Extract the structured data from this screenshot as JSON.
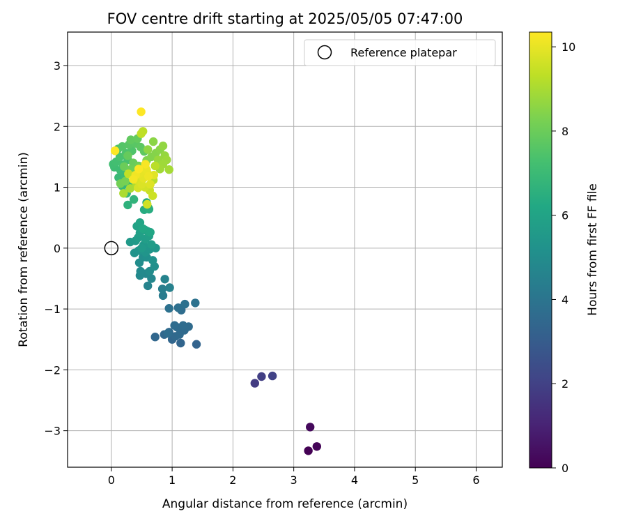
{
  "chart_data": {
    "type": "scatter",
    "title": "FOV centre drift starting at 2025/05/05 07:47:00",
    "xlabel": "Angular distance from reference (arcmin)",
    "ylabel": "Rotation from reference (arcmin)",
    "xlim": [
      -0.72,
      6.43
    ],
    "ylim": [
      -3.6,
      3.55
    ],
    "xticks": [
      0,
      1,
      2,
      3,
      4,
      5,
      6
    ],
    "yticks": [
      -3,
      -2,
      -1,
      0,
      1,
      2,
      3
    ],
    "xtick_labels": [
      "0",
      "1",
      "2",
      "3",
      "4",
      "5",
      "6"
    ],
    "ytick_labels": [
      "−3",
      "−2",
      "−1",
      "0",
      "1",
      "2",
      "3"
    ],
    "grid": true,
    "legend": {
      "position": "top-right",
      "entries": [
        "Reference platepar"
      ]
    },
    "colorbar": {
      "label": "Hours from first FF file",
      "colormap": "viridis",
      "range": [
        0,
        10.35
      ],
      "ticks": [
        0,
        2,
        4,
        6,
        8,
        10
      ],
      "tick_labels": [
        "0",
        "2",
        "4",
        "6",
        "8",
        "10"
      ]
    },
    "reference": {
      "name": "Reference platepar",
      "x": 0,
      "y": 0
    },
    "series": [
      {
        "name": "Reference platepar",
        "points": [
          [
            0,
            0
          ]
        ]
      },
      {
        "points": [
          [
            3.24,
            -3.33,
            0.0
          ],
          [
            3.38,
            -3.26,
            0.1
          ],
          [
            3.27,
            -2.94,
            0.25
          ],
          [
            2.36,
            -2.22,
            1.8
          ],
          [
            2.47,
            -2.11,
            1.9
          ],
          [
            2.65,
            -2.1,
            2.0
          ],
          [
            1.4,
            -1.58,
            3.3
          ],
          [
            1.14,
            -1.56,
            3.35
          ],
          [
            1.0,
            -1.5,
            3.4
          ],
          [
            0.72,
            -1.46,
            3.45
          ],
          [
            0.87,
            -1.42,
            3.45
          ],
          [
            0.95,
            -1.38,
            3.5
          ],
          [
            1.05,
            -1.45,
            3.5
          ],
          [
            1.12,
            -1.42,
            3.55
          ],
          [
            1.2,
            -1.35,
            3.55
          ],
          [
            1.08,
            -1.3,
            3.6
          ],
          [
            1.27,
            -1.29,
            3.6
          ],
          [
            1.18,
            -1.27,
            3.65
          ],
          [
            1.04,
            -1.27,
            3.65
          ],
          [
            0.93,
            -1.4,
            3.7
          ],
          [
            1.15,
            -1.02,
            3.7
          ],
          [
            1.1,
            -0.98,
            3.8
          ],
          [
            0.95,
            -0.99,
            3.85
          ],
          [
            1.21,
            -0.92,
            3.85
          ],
          [
            1.38,
            -0.9,
            3.9
          ],
          [
            0.85,
            -0.78,
            4.3
          ],
          [
            0.84,
            -0.67,
            4.4
          ],
          [
            0.96,
            -0.65,
            4.5
          ],
          [
            0.88,
            -0.51,
            4.6
          ],
          [
            0.6,
            -0.62,
            4.6
          ],
          [
            0.66,
            -0.5,
            4.75
          ],
          [
            0.57,
            -0.42,
            4.8
          ],
          [
            0.47,
            -0.45,
            4.85
          ],
          [
            0.48,
            -0.38,
            4.9
          ],
          [
            0.63,
            -0.38,
            4.95
          ],
          [
            0.46,
            -0.24,
            5.0
          ],
          [
            0.52,
            -0.15,
            5.05
          ],
          [
            0.71,
            -0.3,
            5.1
          ],
          [
            0.58,
            -0.15,
            5.15
          ],
          [
            0.68,
            -0.2,
            5.2
          ],
          [
            0.38,
            -0.08,
            5.25
          ],
          [
            0.45,
            -0.04,
            5.3
          ],
          [
            0.56,
            -0.07,
            5.35
          ],
          [
            0.63,
            -0.02,
            5.4
          ],
          [
            0.73,
            0.0,
            5.45
          ],
          [
            0.53,
            0.05,
            5.5
          ],
          [
            0.31,
            0.1,
            5.55
          ],
          [
            0.4,
            0.12,
            5.6
          ],
          [
            0.5,
            0.0,
            5.6
          ],
          [
            0.66,
            0.06,
            5.65
          ],
          [
            0.44,
            0.17,
            5.7
          ],
          [
            0.56,
            0.15,
            5.75
          ],
          [
            0.62,
            0.2,
            5.8
          ],
          [
            0.47,
            0.25,
            5.85
          ],
          [
            0.55,
            0.3,
            5.9
          ],
          [
            0.42,
            0.36,
            5.95
          ],
          [
            0.59,
            0.28,
            6.0
          ],
          [
            0.47,
            0.42,
            6.05
          ],
          [
            0.64,
            0.26,
            6.1
          ],
          [
            0.52,
            0.32,
            6.15
          ],
          [
            0.62,
            0.64,
            6.3
          ],
          [
            0.54,
            0.63,
            6.35
          ],
          [
            0.58,
            0.75,
            6.4
          ],
          [
            0.61,
            0.66,
            6.5
          ],
          [
            0.27,
            0.71,
            6.6
          ],
          [
            0.37,
            0.8,
            6.7
          ],
          [
            0.25,
            0.9,
            6.8
          ],
          [
            0.18,
            1.02,
            6.85
          ],
          [
            0.29,
            1.05,
            6.9
          ],
          [
            0.12,
            1.16,
            6.95
          ],
          [
            0.22,
            1.2,
            7.0
          ],
          [
            0.15,
            1.28,
            7.05
          ],
          [
            0.05,
            1.33,
            7.1
          ],
          [
            0.03,
            1.38,
            7.15
          ],
          [
            0.08,
            1.42,
            7.2
          ],
          [
            0.19,
            1.37,
            7.25
          ],
          [
            0.27,
            1.45,
            7.3
          ],
          [
            0.14,
            1.5,
            7.35
          ],
          [
            0.24,
            1.56,
            7.4
          ],
          [
            0.34,
            1.6,
            7.45
          ],
          [
            0.11,
            1.63,
            7.5
          ],
          [
            0.18,
            1.67,
            7.55
          ],
          [
            0.29,
            1.7,
            7.6
          ],
          [
            0.4,
            1.72,
            7.65
          ],
          [
            0.48,
            1.66,
            7.7
          ],
          [
            0.54,
            1.59,
            7.75
          ],
          [
            0.32,
            1.78,
            7.8
          ],
          [
            0.43,
            1.8,
            7.85
          ],
          [
            0.27,
            1.52,
            7.9
          ],
          [
            0.36,
            1.4,
            7.95
          ],
          [
            0.21,
            1.34,
            8.0
          ],
          [
            0.33,
            1.3,
            8.05
          ],
          [
            0.45,
            1.35,
            8.1
          ],
          [
            0.15,
            1.06,
            8.15
          ],
          [
            0.23,
            1.1,
            8.2
          ],
          [
            0.39,
            1.18,
            8.25
          ],
          [
            0.49,
            1.25,
            8.3
          ],
          [
            0.58,
            1.44,
            8.35
          ],
          [
            0.66,
            1.5,
            8.4
          ],
          [
            0.73,
            1.56,
            8.45
          ],
          [
            0.8,
            1.62,
            8.5
          ],
          [
            0.69,
            1.75,
            8.55
          ],
          [
            0.6,
            1.62,
            8.6
          ],
          [
            0.85,
            1.68,
            8.65
          ],
          [
            0.88,
            1.52,
            8.7
          ],
          [
            0.77,
            1.45,
            8.75
          ],
          [
            0.91,
            1.45,
            8.8
          ],
          [
            0.85,
            1.38,
            8.85
          ],
          [
            0.8,
            1.3,
            8.9
          ],
          [
            0.95,
            1.29,
            8.95
          ],
          [
            0.31,
            0.98,
            9.0
          ],
          [
            0.2,
            0.9,
            9.05
          ],
          [
            0.41,
            1.07,
            9.1
          ],
          [
            0.62,
            1.2,
            9.15
          ],
          [
            0.69,
            1.12,
            9.2
          ],
          [
            0.72,
            1.35,
            9.25
          ],
          [
            0.52,
            1.92,
            9.3
          ],
          [
            0.49,
            1.88,
            9.35
          ],
          [
            0.28,
            1.22,
            9.4
          ],
          [
            0.57,
            1.3,
            9.45
          ],
          [
            0.63,
            0.95,
            9.5
          ],
          [
            0.68,
            0.86,
            9.55
          ],
          [
            0.59,
            0.72,
            9.6
          ],
          [
            0.55,
            1.0,
            9.65
          ],
          [
            0.44,
            0.99,
            9.7
          ],
          [
            0.42,
            1.12,
            9.75
          ],
          [
            0.5,
            1.05,
            9.8
          ],
          [
            0.64,
            1.05,
            9.85
          ],
          [
            0.7,
            1.2,
            9.9
          ],
          [
            0.53,
            1.15,
            9.95
          ],
          [
            0.47,
            1.23,
            10.0
          ],
          [
            0.58,
            1.28,
            10.05
          ],
          [
            0.61,
            1.18,
            10.1
          ],
          [
            0.4,
            1.2,
            10.15
          ],
          [
            0.36,
            1.13,
            10.2
          ],
          [
            0.56,
            1.38,
            10.25
          ],
          [
            0.45,
            1.3,
            10.3
          ],
          [
            0.06,
            1.6,
            10.35
          ],
          [
            0.49,
            2.24,
            10.35
          ]
        ]
      }
    ]
  }
}
